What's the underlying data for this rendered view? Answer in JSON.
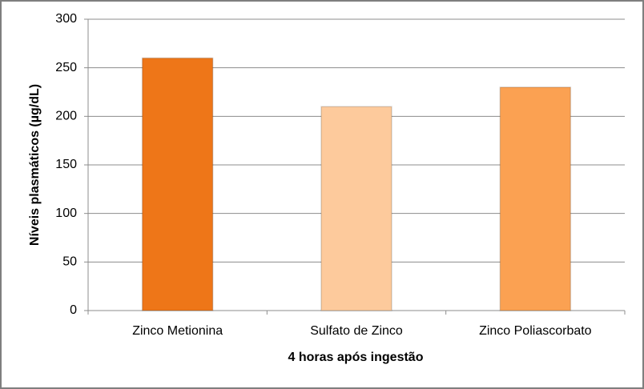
{
  "chart_data": {
    "type": "bar",
    "x_label": "4 horas após ingestão",
    "y_label": "Níveis plasmáticos (µg/dL)",
    "categories": [
      "Zinco Metionina",
      "Sulfato de Zinco",
      "Zinco Poliascorbato"
    ],
    "values": [
      260,
      210,
      230
    ],
    "colors": [
      "#ee7618",
      "#fdca9c",
      "#fba152"
    ],
    "ylim": [
      0,
      300
    ],
    "yticks": [
      0,
      50,
      100,
      150,
      200,
      250,
      300
    ],
    "grid": true
  }
}
